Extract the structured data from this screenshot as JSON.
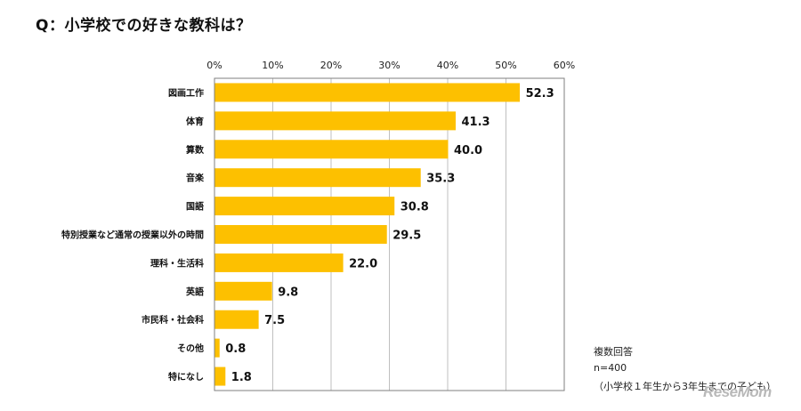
{
  "title": "Q：小学校での好きな教科は？",
  "chart_data": {
    "type": "bar",
    "orientation": "horizontal",
    "title": "Q：小学校での好きな教科は？",
    "categories": [
      "図画工作",
      "体育",
      "算数",
      "音楽",
      "国語",
      "特別授業など通常の授業以外の時間",
      "理科・生活科",
      "英語",
      "市民科・社会科",
      "その他",
      "特になし"
    ],
    "values": [
      52.3,
      41.3,
      40.0,
      35.3,
      30.8,
      29.5,
      22.0,
      9.8,
      7.5,
      0.8,
      1.8
    ],
    "value_labels": [
      "52.3",
      "41.3",
      "40.0",
      "35.3",
      "30.8",
      "29.5",
      "22.0",
      "9.8",
      "7.5",
      "0.8",
      "1.8"
    ],
    "xlim": [
      0,
      60
    ],
    "x_ticks": [
      "0%",
      "10%",
      "20%",
      "30%",
      "40%",
      "50%",
      "60%"
    ],
    "gridlines": true,
    "bar_color": "#FDC000",
    "gridline_color": "#bfbfbf"
  },
  "notes": {
    "line1": "複数回答",
    "line2": "n=400",
    "line3": "（小学校１年生から3年生までの子ども）"
  },
  "logo": "ReseMom"
}
